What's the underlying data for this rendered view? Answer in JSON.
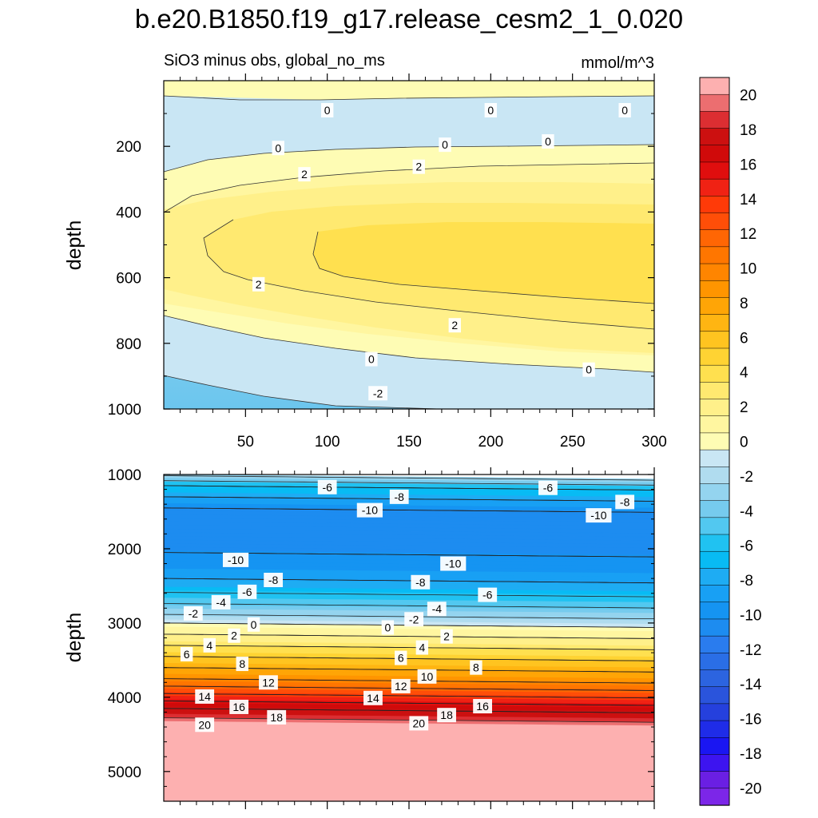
{
  "chart_data": {
    "type": "contour",
    "title": "b.e20.B1850.f19_g17.release_cesm2_1_0.020",
    "subtitle": "SiO3 minus obs, global_no_ms",
    "units": "mmol/m^3",
    "xlabel": "",
    "ylabel": "depth",
    "xlim": [
      0,
      300
    ],
    "x_ticks": [
      50,
      100,
      150,
      200,
      250,
      300
    ],
    "panels": [
      {
        "name": "upper",
        "ylim": [
          0,
          1000
        ],
        "y_ticks": [
          200,
          400,
          600,
          800,
          1000
        ],
        "show_x_tick_labels": true,
        "contour_labels": [
          {
            "x": 100,
            "y": 90,
            "v": "0"
          },
          {
            "x": 200,
            "y": 90,
            "v": "0"
          },
          {
            "x": 282,
            "y": 90,
            "v": "0"
          },
          {
            "x": 70,
            "y": 205,
            "v": "0"
          },
          {
            "x": 172,
            "y": 195,
            "v": "0"
          },
          {
            "x": 235,
            "y": 185,
            "v": "0"
          },
          {
            "x": 86,
            "y": 285,
            "v": "2"
          },
          {
            "x": 156,
            "y": 262,
            "v": "2"
          },
          {
            "x": 58,
            "y": 620,
            "v": "2"
          },
          {
            "x": 178,
            "y": 745,
            "v": "2"
          },
          {
            "x": 127,
            "y": 848,
            "v": "0"
          },
          {
            "x": 260,
            "y": 880,
            "v": "0"
          },
          {
            "x": 131,
            "y": 952,
            "v": "-2"
          }
        ]
      },
      {
        "name": "lower",
        "ylim": [
          1000,
          5400
        ],
        "y_ticks": [
          1000,
          2000,
          3000,
          4000,
          5000
        ],
        "show_x_tick_labels": false,
        "contour_labels": [
          {
            "x": 100,
            "y": 1170,
            "v": "-6"
          },
          {
            "x": 144,
            "y": 1300,
            "v": "-8"
          },
          {
            "x": 126,
            "y": 1480,
            "v": "-10"
          },
          {
            "x": 235,
            "y": 1180,
            "v": "-6"
          },
          {
            "x": 282,
            "y": 1370,
            "v": "-8"
          },
          {
            "x": 266,
            "y": 1550,
            "v": "-10"
          },
          {
            "x": 44,
            "y": 2150,
            "v": "-10"
          },
          {
            "x": 67,
            "y": 2420,
            "v": "-8"
          },
          {
            "x": 51,
            "y": 2580,
            "v": "-6"
          },
          {
            "x": 35,
            "y": 2720,
            "v": "-4"
          },
          {
            "x": 18,
            "y": 2870,
            "v": "-2"
          },
          {
            "x": 55,
            "y": 3020,
            "v": "0"
          },
          {
            "x": 43,
            "y": 3170,
            "v": "2"
          },
          {
            "x": 28,
            "y": 3300,
            "v": "4"
          },
          {
            "x": 14,
            "y": 3420,
            "v": "6"
          },
          {
            "x": 48,
            "y": 3550,
            "v": "8"
          },
          {
            "x": 64,
            "y": 3800,
            "v": "12"
          },
          {
            "x": 25,
            "y": 3990,
            "v": "14"
          },
          {
            "x": 46,
            "y": 4130,
            "v": "16"
          },
          {
            "x": 69,
            "y": 4270,
            "v": "18"
          },
          {
            "x": 25,
            "y": 4370,
            "v": "20"
          },
          {
            "x": 177,
            "y": 2200,
            "v": "-10"
          },
          {
            "x": 157,
            "y": 2450,
            "v": "-8"
          },
          {
            "x": 198,
            "y": 2620,
            "v": "-6"
          },
          {
            "x": 167,
            "y": 2810,
            "v": "-4"
          },
          {
            "x": 153,
            "y": 2950,
            "v": "-2"
          },
          {
            "x": 137,
            "y": 3060,
            "v": "0"
          },
          {
            "x": 173,
            "y": 3180,
            "v": "2"
          },
          {
            "x": 158,
            "y": 3330,
            "v": "4"
          },
          {
            "x": 145,
            "y": 3470,
            "v": "6"
          },
          {
            "x": 191,
            "y": 3600,
            "v": "8"
          },
          {
            "x": 161,
            "y": 3720,
            "v": "10"
          },
          {
            "x": 145,
            "y": 3850,
            "v": "12"
          },
          {
            "x": 128,
            "y": 4010,
            "v": "14"
          },
          {
            "x": 195,
            "y": 4120,
            "v": "16"
          },
          {
            "x": 173,
            "y": 4240,
            "v": "18"
          },
          {
            "x": 156,
            "y": 4350,
            "v": "20"
          }
        ]
      }
    ],
    "colorbar": {
      "levels": [
        -21,
        -20,
        -19,
        -18,
        -17,
        -16,
        -15,
        -14,
        -13,
        -12,
        -11,
        -10,
        -9,
        -8,
        -7,
        -6,
        -5,
        -4,
        -3,
        -2,
        -1,
        0,
        1,
        2,
        3,
        4,
        5,
        6,
        7,
        8,
        9,
        10,
        11,
        12,
        13,
        14,
        15,
        16,
        17,
        18,
        19,
        20,
        21
      ],
      "tick_labels": [
        "-20",
        "-18",
        "-16",
        "-14",
        "-12",
        "-10",
        "-8",
        "-6",
        "-4",
        "-2",
        "0",
        "2",
        "4",
        "6",
        "8",
        "10",
        "12",
        "14",
        "16",
        "18",
        "20"
      ],
      "colors": [
        "#7c26e8",
        "#6a1fe3",
        "#3d14f0",
        "#1a16f2",
        "#1f2ce8",
        "#2540dd",
        "#2a54dc",
        "#2c64e0",
        "#2a6ee6",
        "#2a7cee",
        "#1d8cf0",
        "#1594f2",
        "#18a0f4",
        "#1eacf3",
        "#08bbf4",
        "#20c2f1",
        "#52c8f0",
        "#76cbee",
        "#94d4ef",
        "#b0dcef",
        "#c9e6f4",
        "#fefcb4",
        "#fff6a0",
        "#fff08a",
        "#ffe970",
        "#ffe04f",
        "#ffd333",
        "#ffc420",
        "#ffb512",
        "#ffa506",
        "#ff9500",
        "#ff8500",
        "#ff7600",
        "#ff6604",
        "#ff4e08",
        "#ff3a08",
        "#f02214",
        "#e00e0e",
        "#d00a0a",
        "#cc1010",
        "#dc2e32",
        "#ec6e70",
        "#fdb0b0"
      ]
    }
  }
}
